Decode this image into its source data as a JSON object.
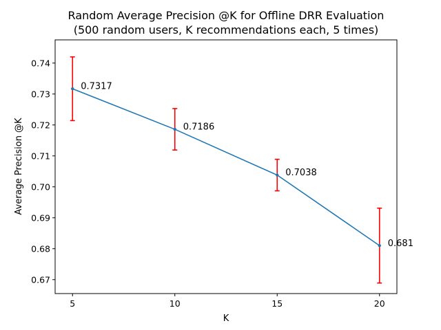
{
  "chart_data": {
    "type": "line",
    "title": "Random Average Precision @K for Offline DRR Evaluation",
    "subtitle": "(500 random users, K recommendations each, 5 times)",
    "xlabel": "K",
    "ylabel": "Average Precision @K",
    "x": [
      5,
      10,
      15,
      20
    ],
    "x_ticks": [
      "5",
      "10",
      "15",
      "20"
    ],
    "xlim": [
      4.15,
      20.85
    ],
    "ylim": [
      0.6655,
      0.7475
    ],
    "y_ticks": [
      "0.67",
      "0.68",
      "0.69",
      "0.70",
      "0.71",
      "0.72",
      "0.73",
      "0.74"
    ],
    "series": [
      {
        "values": [
          0.7317,
          0.7186,
          0.7038,
          0.681
        ],
        "error": [
          0.0103,
          0.0067,
          0.0051,
          0.0121
        ],
        "data_labels": [
          "0.7317",
          "0.7186",
          "0.7038",
          "0.681"
        ],
        "color": "#1f77b4",
        "error_color": "#ff0000"
      }
    ],
    "grid": false,
    "legend": "none"
  }
}
